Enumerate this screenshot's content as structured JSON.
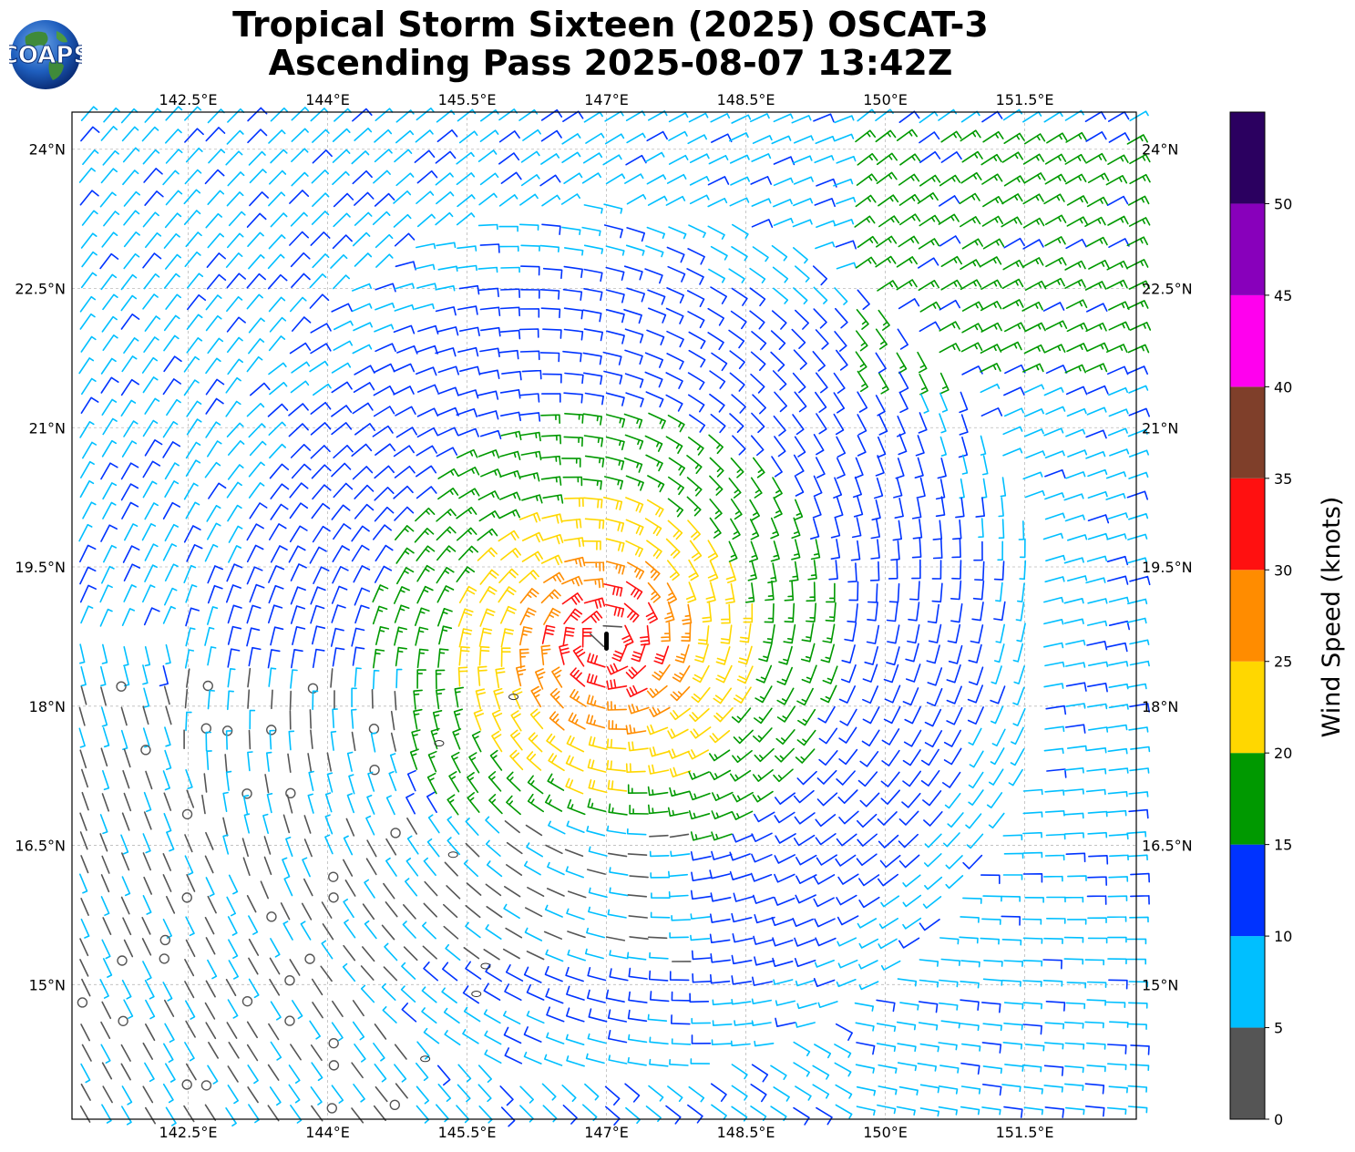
{
  "title": {
    "line1": "Tropical Storm Sixteen (2025) OSCAT-3",
    "line2": "Ascending Pass 2025-08-07 13:42Z"
  },
  "logo": {
    "text": "COAPS"
  },
  "map": {
    "lon_range": [
      141.25,
      152.7
    ],
    "lat_range": [
      13.55,
      24.4
    ],
    "lon_ticks": [
      "142.5°E",
      "144°E",
      "145.5°E",
      "147°E",
      "148.5°E",
      "150°E",
      "151.5°E"
    ],
    "lon_tick_values": [
      142.5,
      144.0,
      145.5,
      147.0,
      148.5,
      150.0,
      151.5
    ],
    "lat_ticks": [
      "24°N",
      "22.5°N",
      "21°N",
      "19.5°N",
      "18°N",
      "16.5°N",
      "15°N"
    ],
    "lat_tick_values": [
      24.0,
      22.5,
      21.0,
      19.5,
      18.0,
      16.5,
      15.0
    ],
    "gridlines": true,
    "storm_center": {
      "lon": 147.0,
      "lat": 18.7
    },
    "island_labels": []
  },
  "colorbar": {
    "label": "Wind Speed (knots)",
    "ticks": [
      "0",
      "5",
      "10",
      "15",
      "20",
      "25",
      "30",
      "35",
      "40",
      "45",
      "50"
    ],
    "bins": [
      {
        "min": 0,
        "max": 5,
        "color": "#555555"
      },
      {
        "min": 5,
        "max": 10,
        "color": "#00bfff"
      },
      {
        "min": 10,
        "max": 15,
        "color": "#0033ff"
      },
      {
        "min": 15,
        "max": 20,
        "color": "#009900"
      },
      {
        "min": 20,
        "max": 25,
        "color": "#ffd700"
      },
      {
        "min": 25,
        "max": 30,
        "color": "#ff8c00"
      },
      {
        "min": 30,
        "max": 35,
        "color": "#ff1010"
      },
      {
        "min": 35,
        "max": 40,
        "color": "#7f3f2a"
      },
      {
        "min": 40,
        "max": 45,
        "color": "#ff00ee"
      },
      {
        "min": 45,
        "max": 50,
        "color": "#8800bb"
      },
      {
        "min": 50,
        "max": 55,
        "color": "#2b0060"
      }
    ]
  }
}
